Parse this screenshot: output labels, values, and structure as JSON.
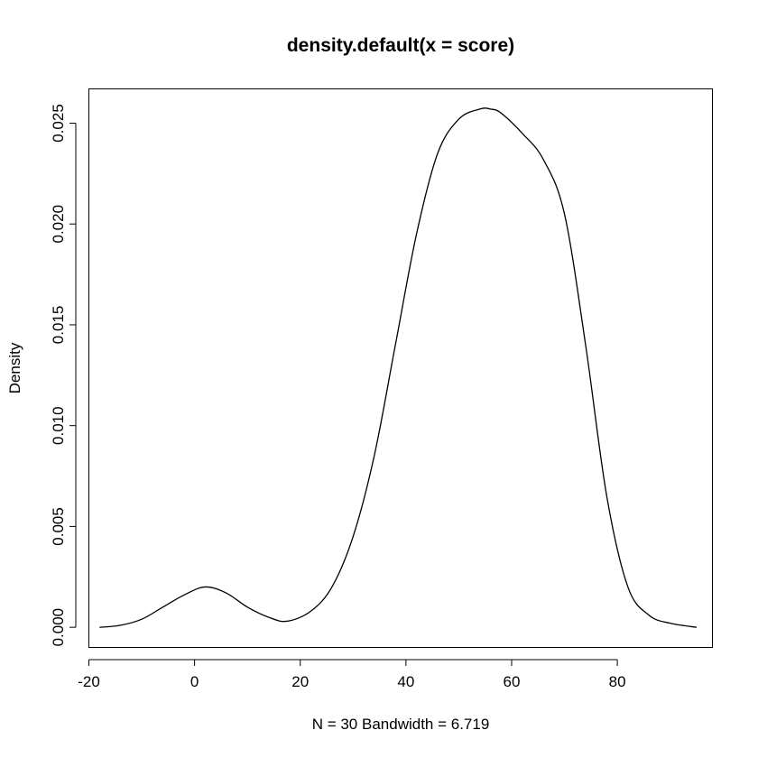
{
  "chart_data": {
    "type": "line",
    "title": "density.default(x = score)",
    "xlabel": "N = 30   Bandwidth = 6.719",
    "ylabel": "Density",
    "xlim": [
      -20,
      98
    ],
    "ylim": [
      -0.001,
      0.0267
    ],
    "x_ticks": [
      -20,
      0,
      20,
      40,
      60,
      80
    ],
    "y_ticks": [
      0.0,
      0.005,
      0.01,
      0.015,
      0.02,
      0.025
    ],
    "x_tick_labels": [
      "-20",
      "0",
      "20",
      "40",
      "60",
      "80"
    ],
    "y_tick_labels": [
      "0.000",
      "0.005",
      "0.010",
      "0.015",
      "0.020",
      "0.025"
    ],
    "grid": false,
    "series": [
      {
        "x": [
          -18,
          -14,
          -10,
          -6,
          -2,
          2,
          6,
          10,
          14,
          17.5,
          22,
          26,
          30,
          34,
          38,
          42,
          46,
          50,
          54,
          56,
          58,
          62,
          66,
          70,
          74,
          78,
          82,
          86,
          90,
          95
        ],
        "y": [
          0.0,
          0.0001,
          0.0004,
          0.001,
          0.0016,
          0.002,
          0.0017,
          0.001,
          0.0005,
          0.0003,
          0.0008,
          0.002,
          0.0045,
          0.0085,
          0.014,
          0.0195,
          0.0235,
          0.0252,
          0.0257,
          0.0257,
          0.0255,
          0.0245,
          0.0232,
          0.0205,
          0.014,
          0.0065,
          0.002,
          0.0006,
          0.0002,
          0.0
        ]
      }
    ]
  }
}
